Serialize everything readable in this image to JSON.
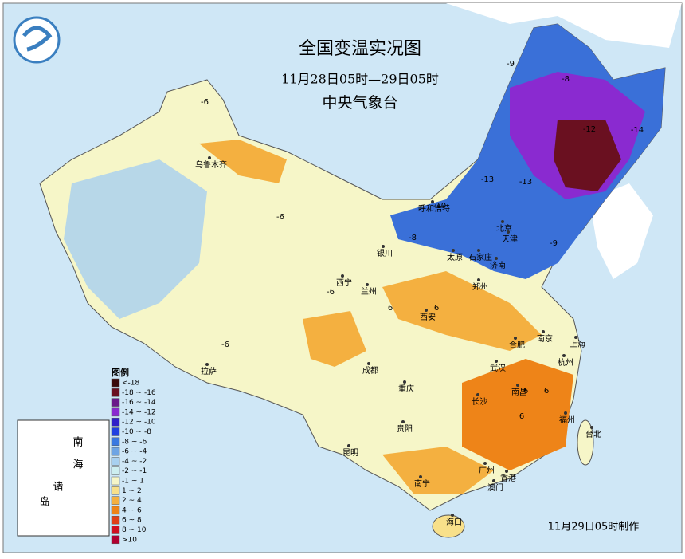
{
  "header": {
    "title": "全国变温实况图",
    "period": "11月28日05时—29日05时",
    "agency": "中央气象台"
  },
  "legend": {
    "title": "图例",
    "items": [
      {
        "label": "<-18",
        "color": "#3a0a0a"
      },
      {
        "label": "-18 ~ -16",
        "color": "#6a1020"
      },
      {
        "label": "-16 ~ -14",
        "color": "#6a1a8a"
      },
      {
        "label": "-14 ~ -12",
        "color": "#8a2ad0"
      },
      {
        "label": "-12 ~ -10",
        "color": "#3020c8"
      },
      {
        "label": "-10 ~ -8",
        "color": "#2040e0"
      },
      {
        "label": "-8 ~ -6",
        "color": "#3a78e0"
      },
      {
        "label": "-6 ~ -4",
        "color": "#6ea4e4"
      },
      {
        "label": "-4 ~ -2",
        "color": "#a8d0f0"
      },
      {
        "label": "-2 ~ -1",
        "color": "#cdeef0"
      },
      {
        "label": "-1 ~ 1",
        "color": "#f6f6c8"
      },
      {
        "label": "1 ~ 2",
        "color": "#f8e08a"
      },
      {
        "label": "2 ~ 4",
        "color": "#f4b040"
      },
      {
        "label": "4 ~ 6",
        "color": "#ee8418"
      },
      {
        "label": "6 ~ 8",
        "color": "#e04018"
      },
      {
        "label": "8 ~ 10",
        "color": "#d01020"
      },
      {
        "label": ">10",
        "color": "#b00030"
      }
    ]
  },
  "cities": [
    "乌鲁木齐",
    "呼和浩特",
    "北京",
    "天津",
    "银川",
    "太原",
    "石家庄",
    "济南",
    "西宁",
    "兰州",
    "西安",
    "郑州",
    "合肥",
    "南京",
    "上海",
    "杭州",
    "武汉",
    "成都",
    "重庆",
    "长沙",
    "南昌",
    "福州",
    "台北",
    "贵阳",
    "昆明",
    "南宁",
    "广州",
    "香港",
    "澳门",
    "海口",
    "拉萨"
  ],
  "map_values": [
    -6,
    -6,
    -6,
    6,
    6,
    -6,
    6,
    6,
    6,
    -9,
    -8,
    -12,
    -14,
    -10,
    -8,
    -9,
    -13,
    -13
  ],
  "inset": {
    "labels": [
      "南",
      "海",
      "诸",
      "岛"
    ]
  },
  "footer": "11月29日05时制作"
}
